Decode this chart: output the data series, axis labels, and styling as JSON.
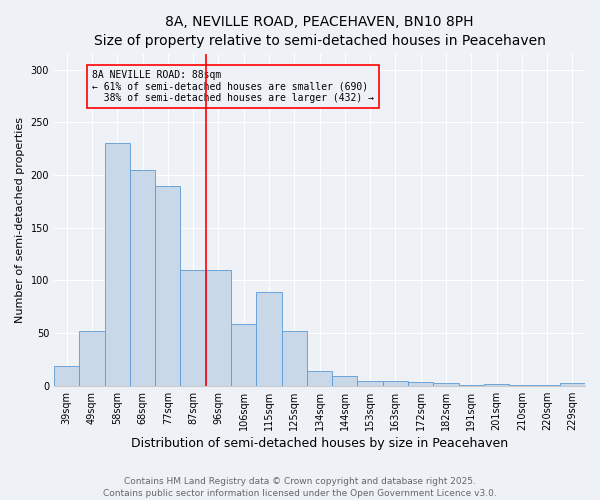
{
  "title": "8A, NEVILLE ROAD, PEACEHAVEN, BN10 8PH",
  "subtitle": "Size of property relative to semi-detached houses in Peacehaven",
  "xlabel": "Distribution of semi-detached houses by size in Peacehaven",
  "ylabel": "Number of semi-detached properties",
  "categories": [
    "39sqm",
    "49sqm",
    "58sqm",
    "68sqm",
    "77sqm",
    "87sqm",
    "96sqm",
    "106sqm",
    "115sqm",
    "125sqm",
    "134sqm",
    "144sqm",
    "153sqm",
    "163sqm",
    "172sqm",
    "182sqm",
    "191sqm",
    "201sqm",
    "210sqm",
    "220sqm",
    "229sqm"
  ],
  "values": [
    19,
    52,
    230,
    205,
    190,
    110,
    110,
    59,
    89,
    52,
    14,
    9,
    5,
    5,
    4,
    3,
    1,
    2,
    1,
    1,
    3
  ],
  "bar_color": "#c8d8e8",
  "bar_edge_color": "#5b9bd5",
  "property_line_x": 5.5,
  "property_line_label": "8A NEVILLE ROAD: 88sqm",
  "smaller_pct": "61%",
  "smaller_n": 690,
  "larger_pct": "38%",
  "larger_n": 432,
  "annotation_box_edge_color": "red",
  "vline_color": "red",
  "ylim": [
    0,
    315
  ],
  "yticks": [
    0,
    50,
    100,
    150,
    200,
    250,
    300
  ],
  "footnote1": "Contains HM Land Registry data © Crown copyright and database right 2025.",
  "footnote2": "Contains public sector information licensed under the Open Government Licence v3.0.",
  "background_color": "#eef2f7",
  "title_fontsize": 10,
  "subtitle_fontsize": 9,
  "xlabel_fontsize": 9,
  "ylabel_fontsize": 8,
  "tick_fontsize": 7,
  "footnote_fontsize": 6.5,
  "ann_fontsize": 7
}
